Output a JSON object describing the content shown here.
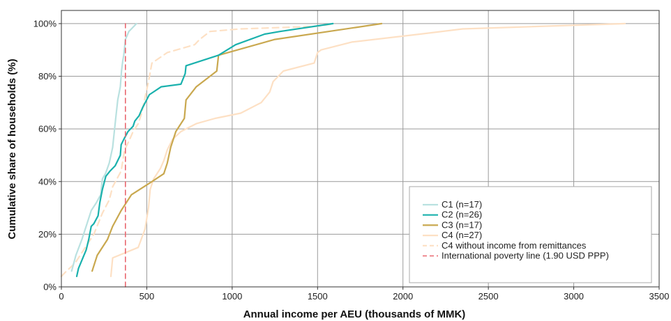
{
  "chart_data": {
    "type": "line",
    "title": "",
    "xlabel": "Annual income per AEU (thousands of MMK)",
    "ylabel": "Cumulative share of households (%)",
    "xlim": [
      0,
      3500
    ],
    "ylim": [
      0,
      105
    ],
    "x_ticks": [
      0,
      500,
      1000,
      1500,
      2000,
      2500,
      3000,
      3500
    ],
    "y_ticks": [
      0,
      20,
      40,
      60,
      80,
      100
    ],
    "x_tick_labels": [
      "0",
      "500",
      "1000",
      "1500",
      "2000",
      "2500",
      "3000",
      "3500"
    ],
    "y_tick_labels": [
      "0%",
      "20%",
      "40%",
      "60%",
      "80%",
      "100%"
    ],
    "grid": true,
    "legend_position": "lower-right",
    "series": [
      {
        "name": "C1 (n=17)",
        "color": "#b9e1e0",
        "dash": "solid",
        "x": [
          60,
          85,
          120,
          150,
          175,
          205,
          230,
          240,
          258,
          280,
          300,
          310,
          318,
          330,
          345,
          352,
          360,
          365,
          375,
          382,
          395,
          410,
          440
        ],
        "y": [
          6,
          12,
          18,
          24,
          29,
          32,
          35,
          41,
          43,
          47,
          53,
          59,
          64,
          71,
          76,
          82,
          86,
          88,
          94,
          95,
          97,
          98,
          100
        ]
      },
      {
        "name": "C2 (n=26)",
        "color": "#1ab1ad",
        "dash": "solid",
        "x": [
          90,
          100,
          145,
          160,
          175,
          190,
          215,
          225,
          240,
          260,
          285,
          315,
          345,
          350,
          365,
          390,
          420,
          430,
          455,
          475,
          515,
          585,
          700,
          725,
          730,
          920,
          1020,
          1190,
          1280,
          1590
        ],
        "y": [
          4,
          7,
          14,
          18,
          23,
          24,
          27,
          32,
          37,
          42,
          44,
          46,
          50,
          54,
          56,
          59,
          61,
          63,
          65,
          68,
          73,
          76,
          77,
          81,
          84,
          88,
          92,
          96,
          97,
          100
        ]
      },
      {
        "name": "C3 (n=17)",
        "color": "#c9a84f",
        "dash": "solid",
        "x": [
          180,
          210,
          270,
          300,
          350,
          410,
          530,
          600,
          620,
          640,
          670,
          720,
          730,
          790,
          910,
          920,
          1250,
          1875
        ],
        "y": [
          6,
          12,
          18,
          23,
          29,
          35,
          40,
          43,
          47,
          53,
          59,
          64,
          71,
          76,
          82,
          88,
          94,
          100
        ]
      },
      {
        "name": "C4 (n=27)",
        "color": "#fde0c4",
        "dash": "solid",
        "x": [
          290,
          300,
          450,
          490,
          500,
          510,
          520,
          540,
          580,
          600,
          620,
          650,
          700,
          730,
          790,
          900,
          1050,
          1170,
          1220,
          1240,
          1300,
          1480,
          1500,
          1520,
          1700,
          2100,
          2350,
          3300
        ],
        "y": [
          4,
          11,
          15,
          22,
          26,
          30,
          37,
          41,
          45,
          48,
          52,
          56,
          59,
          60,
          62,
          64,
          66,
          70,
          74,
          78,
          82,
          85,
          89,
          90,
          93,
          96,
          98,
          100
        ]
      },
      {
        "name": "C4 without income from remittances",
        "color": "#fde0c4",
        "dash": "dashed",
        "x": [
          0,
          30,
          80,
          130,
          190,
          240,
          280,
          300,
          350,
          370,
          400,
          420,
          450,
          470,
          490,
          510,
          530,
          620,
          780,
          810,
          850,
          870,
          1050,
          1500,
          1600
        ],
        "y": [
          4,
          6,
          9,
          14,
          20,
          28,
          33,
          38,
          44,
          52,
          56,
          59,
          62,
          66,
          72,
          78,
          85,
          89,
          92,
          94,
          96,
          97,
          98,
          99,
          100
        ]
      },
      {
        "name": "International poverty line (1.90 USD PPP)",
        "color": "#e9676f",
        "dash": "dashed",
        "x": [
          375,
          375
        ],
        "y": [
          0,
          100
        ]
      }
    ]
  }
}
